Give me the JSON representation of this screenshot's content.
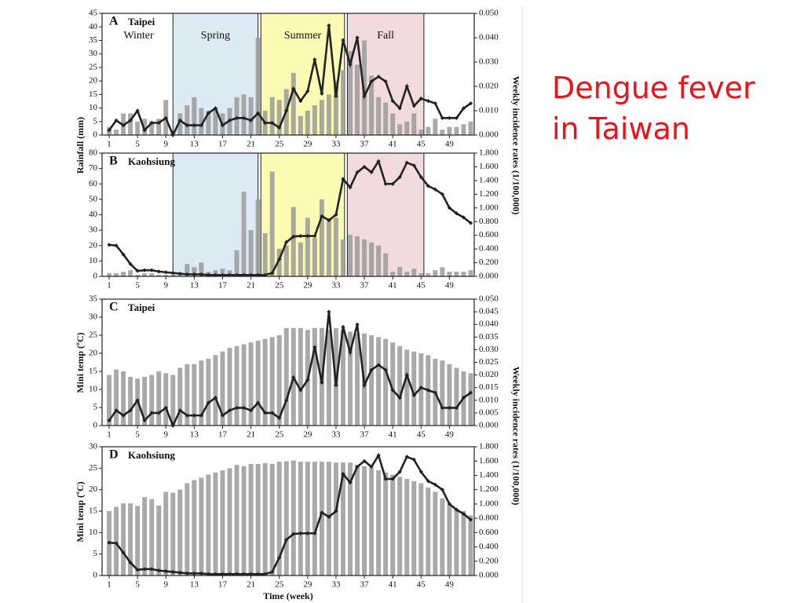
{
  "title": "Dengue fever in Taiwan",
  "chart_data": [
    {
      "type": "bar_line",
      "panel": "A",
      "title": "Taipei",
      "ylabel": "Rainfall (mm)",
      "y2label": "Weekly incidence rates (1/100,000)",
      "bands": [
        {
          "label": "Winter",
          "from": 0.5,
          "to": 9.8
        },
        {
          "label": "Spring",
          "from": 10,
          "to": 22,
          "color": "#dceaf3"
        },
        {
          "label": "Summer",
          "from": 22.4,
          "to": 34.2,
          "color": "#fbfbb4"
        },
        {
          "label": "Fall",
          "from": 34.6,
          "to": 45.4,
          "color": "#f2dbdc"
        }
      ],
      "x": [
        1,
        2,
        3,
        4,
        5,
        6,
        7,
        8,
        9,
        10,
        11,
        12,
        13,
        14,
        15,
        16,
        17,
        18,
        19,
        20,
        21,
        22,
        23,
        24,
        25,
        26,
        27,
        28,
        29,
        30,
        31,
        32,
        33,
        34,
        35,
        36,
        37,
        38,
        39,
        40,
        41,
        42,
        43,
        44,
        45,
        46,
        47,
        48,
        49,
        50,
        51,
        52
      ],
      "xlim": [
        0,
        52.5
      ],
      "xticks": [
        1,
        5,
        9,
        13,
        17,
        21,
        25,
        29,
        33,
        37,
        41,
        45,
        49
      ],
      "ylim": [
        0,
        45
      ],
      "yticks": [
        0,
        5,
        10,
        15,
        20,
        25,
        30,
        35,
        40,
        45
      ],
      "y2lim": [
        0,
        0.05
      ],
      "y2ticks": [
        {
          "value": 0,
          "label": "0.000"
        },
        {
          "value": 0.01,
          "label": "0.010"
        },
        {
          "value": 0.02,
          "label": "0.020"
        },
        {
          "value": 0.03,
          "label": "0.030"
        },
        {
          "value": 0.04,
          "label": "0.040"
        },
        {
          "value": 0.05,
          "label": "0.050"
        }
      ],
      "series": [
        {
          "kind": "bar",
          "color": "#9a9a9a",
          "values": [
            3,
            2,
            8,
            8,
            5,
            6,
            5,
            6,
            13,
            1,
            8,
            11,
            14,
            10,
            9,
            10,
            8,
            10,
            14,
            15,
            14,
            36,
            9,
            14,
            13,
            17,
            23,
            7,
            9,
            11,
            13,
            15,
            20,
            24,
            31,
            26,
            35,
            22,
            14,
            12,
            8,
            4,
            5,
            8,
            2,
            3,
            6,
            2,
            3,
            3,
            4,
            5
          ]
        },
        {
          "kind": "line",
          "axis": "y2",
          "color": "#222222",
          "values": [
            0.002,
            0.006,
            0.004,
            0.006,
            0.01,
            0.002,
            0.005,
            0.005,
            0.007,
            0.0,
            0.006,
            0.004,
            0.004,
            0.004,
            0.009,
            0.011,
            0.004,
            0.006,
            0.007,
            0.007,
            0.006,
            0.009,
            0.005,
            0.005,
            0.003,
            0.01,
            0.019,
            0.014,
            0.018,
            0.031,
            0.017,
            0.045,
            0.016,
            0.039,
            0.029,
            0.04,
            0.016,
            0.022,
            0.024,
            0.022,
            0.014,
            0.011,
            0.02,
            0.012,
            0.015,
            0.014,
            0.013,
            0.007,
            0.007,
            0.007,
            0.011,
            0.013
          ]
        }
      ]
    },
    {
      "type": "bar_line",
      "panel": "B",
      "title": "Kaohsiung",
      "bands": [
        {
          "from": 10,
          "to": 22,
          "color": "#dceaf3"
        },
        {
          "from": 22.4,
          "to": 34.2,
          "color": "#fbfbb4"
        },
        {
          "from": 34.6,
          "to": 45.4,
          "color": "#f2dbdc"
        }
      ],
      "x": [
        1,
        2,
        3,
        4,
        5,
        6,
        7,
        8,
        9,
        10,
        11,
        12,
        13,
        14,
        15,
        16,
        17,
        18,
        19,
        20,
        21,
        22,
        23,
        24,
        25,
        26,
        27,
        28,
        29,
        30,
        31,
        32,
        33,
        34,
        35,
        36,
        37,
        38,
        39,
        40,
        41,
        42,
        43,
        44,
        45,
        46,
        47,
        48,
        49,
        50,
        51,
        52
      ],
      "xlim": [
        0,
        52.5
      ],
      "xticks": [
        1,
        5,
        9,
        13,
        17,
        21,
        25,
        29,
        33,
        37,
        41,
        45,
        49
      ],
      "ylim": [
        0,
        80
      ],
      "yticks": [
        0,
        10,
        20,
        30,
        40,
        50,
        60,
        70,
        80
      ],
      "y2lim": [
        0,
        1.8
      ],
      "y2ticks": [
        {
          "value": 0,
          "label": "0.000"
        },
        {
          "value": 0.2,
          "label": "0.200"
        },
        {
          "value": 0.4,
          "label": "0.400"
        },
        {
          "value": 0.6,
          "label": "0.600"
        },
        {
          "value": 0.8,
          "label": "0.800"
        },
        {
          "value": 1,
          "label": "1.000"
        },
        {
          "value": 1.2,
          "label": "1.200"
        },
        {
          "value": 1.4,
          "label": "1.400"
        },
        {
          "value": 1.6,
          "label": "1.600"
        },
        {
          "value": 1.8,
          "label": "1.800"
        }
      ],
      "series": [
        {
          "kind": "bar",
          "color": "#9a9a9a",
          "values": [
            2,
            2,
            3,
            4,
            1,
            2,
            2,
            1,
            1,
            1,
            2,
            8,
            6,
            9,
            3,
            4,
            5,
            4,
            17,
            55,
            30,
            50,
            28,
            68,
            18,
            20,
            45,
            22,
            38,
            25,
            50,
            37,
            38,
            24,
            27,
            26,
            24,
            22,
            20,
            15,
            3,
            6,
            3,
            5,
            2,
            2,
            4,
            6,
            3,
            3,
            3,
            4
          ]
        },
        {
          "kind": "line",
          "axis": "y2",
          "color": "#222222",
          "values": [
            0.46,
            0.45,
            0.32,
            0.18,
            0.08,
            0.09,
            0.09,
            0.07,
            0.06,
            0.05,
            0.04,
            0.03,
            0.03,
            0.03,
            0.02,
            0.02,
            0.02,
            0.02,
            0.02,
            0.02,
            0.02,
            0.02,
            0.02,
            0.05,
            0.25,
            0.5,
            0.58,
            0.59,
            0.59,
            0.59,
            0.88,
            0.82,
            0.9,
            1.42,
            1.3,
            1.52,
            1.6,
            1.52,
            1.68,
            1.35,
            1.35,
            1.45,
            1.66,
            1.62,
            1.45,
            1.32,
            1.27,
            1.2,
            1.0,
            0.92,
            0.86,
            0.78
          ]
        }
      ]
    },
    {
      "type": "bar_line",
      "panel": "C",
      "title": "Taipei",
      "ylabel": "Mini temp (ºC)",
      "y2label": "Weekly incidence rates (1/100,000)",
      "x": [
        1,
        2,
        3,
        4,
        5,
        6,
        7,
        8,
        9,
        10,
        11,
        12,
        13,
        14,
        15,
        16,
        17,
        18,
        19,
        20,
        21,
        22,
        23,
        24,
        25,
        26,
        27,
        28,
        29,
        30,
        31,
        32,
        33,
        34,
        35,
        36,
        37,
        38,
        39,
        40,
        41,
        42,
        43,
        44,
        45,
        46,
        47,
        48,
        49,
        50,
        51,
        52
      ],
      "xlim": [
        0,
        52.5
      ],
      "xticks": [
        1,
        5,
        9,
        13,
        17,
        21,
        25,
        29,
        33,
        37,
        41,
        45,
        49
      ],
      "ylim": [
        0,
        35
      ],
      "yticks": [
        0,
        5,
        10,
        15,
        20,
        25,
        30,
        35
      ],
      "y2lim": [
        0,
        0.05
      ],
      "y2ticks": [
        {
          "value": 0,
          "label": "0.000"
        },
        {
          "value": 0.005,
          "label": "0.005"
        },
        {
          "value": 0.01,
          "label": "0.010"
        },
        {
          "value": 0.015,
          "label": "0.015"
        },
        {
          "value": 0.02,
          "label": "0.020"
        },
        {
          "value": 0.025,
          "label": "0.025"
        },
        {
          "value": 0.03,
          "label": "0.030"
        },
        {
          "value": 0.035,
          "label": "0.035"
        },
        {
          "value": 0.04,
          "label": "0.040"
        },
        {
          "value": 0.045,
          "label": "0.045"
        },
        {
          "value": 0.05,
          "label": "0.050"
        }
      ],
      "series": [
        {
          "kind": "bar",
          "color": "#9a9a9a",
          "values": [
            14,
            15.5,
            15,
            13.5,
            13,
            13.5,
            14,
            15,
            14.5,
            14,
            16,
            17,
            17,
            18,
            18.5,
            19.5,
            20.5,
            21.5,
            22,
            22.5,
            23,
            23.5,
            24,
            24.5,
            25,
            27,
            27,
            27,
            26.5,
            27,
            27,
            26.5,
            27,
            26.5,
            26,
            25.5,
            25.5,
            25,
            24.5,
            24,
            23,
            22,
            21,
            20.5,
            20,
            19.5,
            18.5,
            18,
            17,
            16,
            15,
            14.5
          ]
        },
        {
          "kind": "line",
          "axis": "y2",
          "color": "#222222",
          "values": [
            0.002,
            0.006,
            0.004,
            0.006,
            0.01,
            0.002,
            0.005,
            0.005,
            0.007,
            0.0,
            0.006,
            0.004,
            0.004,
            0.004,
            0.009,
            0.011,
            0.004,
            0.006,
            0.007,
            0.007,
            0.006,
            0.009,
            0.005,
            0.005,
            0.003,
            0.01,
            0.019,
            0.014,
            0.018,
            0.031,
            0.017,
            0.045,
            0.016,
            0.039,
            0.029,
            0.04,
            0.016,
            0.022,
            0.024,
            0.022,
            0.014,
            0.011,
            0.02,
            0.012,
            0.015,
            0.014,
            0.013,
            0.007,
            0.007,
            0.007,
            0.011,
            0.013
          ]
        }
      ]
    },
    {
      "type": "bar_line",
      "panel": "D",
      "title": "Kaohsiung",
      "ylabel": "Mini temp (ºC)",
      "xlabel": "Time (week)",
      "x": [
        1,
        2,
        3,
        4,
        5,
        6,
        7,
        8,
        9,
        10,
        11,
        12,
        13,
        14,
        15,
        16,
        17,
        18,
        19,
        20,
        21,
        22,
        23,
        24,
        25,
        26,
        27,
        28,
        29,
        30,
        31,
        32,
        33,
        34,
        35,
        36,
        37,
        38,
        39,
        40,
        41,
        42,
        43,
        44,
        45,
        46,
        47,
        48,
        49,
        50,
        51,
        52
      ],
      "xlim": [
        0,
        52.5
      ],
      "xticks": [
        1,
        5,
        9,
        13,
        17,
        21,
        25,
        29,
        33,
        37,
        41,
        45,
        49
      ],
      "ylim": [
        0,
        30
      ],
      "yticks": [
        0,
        5,
        10,
        15,
        20,
        25,
        30
      ],
      "y2lim": [
        0,
        1.8
      ],
      "y2ticks": [
        {
          "value": 0,
          "label": "0.000"
        },
        {
          "value": 0.2,
          "label": "0.200"
        },
        {
          "value": 0.4,
          "label": "0.400"
        },
        {
          "value": 0.6,
          "label": "0.600"
        },
        {
          "value": 0.8,
          "label": "0.800"
        },
        {
          "value": 1,
          "label": "1.000"
        },
        {
          "value": 1.2,
          "label": "1.200"
        },
        {
          "value": 1.4,
          "label": "1.400"
        },
        {
          "value": 1.6,
          "label": "1.600"
        },
        {
          "value": 1.8,
          "label": "1.800"
        }
      ],
      "series": [
        {
          "kind": "bar",
          "color": "#9a9a9a",
          "values": [
            15,
            16,
            16.8,
            16.8,
            16.2,
            18.3,
            17.8,
            16.3,
            19.5,
            19.3,
            20,
            21.5,
            22.2,
            22.8,
            23.5,
            24,
            24.5,
            25,
            25.8,
            25.5,
            26,
            26,
            26.2,
            26,
            26.5,
            26.6,
            26.8,
            26.5,
            26.5,
            26.5,
            26.5,
            26.5,
            26.3,
            26.3,
            26.3,
            25.8,
            25.5,
            25,
            24.5,
            24,
            23.5,
            23,
            22.5,
            22,
            21.5,
            20.5,
            19.5,
            18,
            16.5,
            15.5,
            15,
            14
          ]
        },
        {
          "kind": "line",
          "axis": "y2",
          "color": "#222222",
          "values": [
            0.46,
            0.45,
            0.32,
            0.18,
            0.08,
            0.09,
            0.09,
            0.07,
            0.06,
            0.05,
            0.04,
            0.03,
            0.03,
            0.03,
            0.02,
            0.02,
            0.02,
            0.02,
            0.02,
            0.02,
            0.02,
            0.02,
            0.02,
            0.05,
            0.25,
            0.5,
            0.58,
            0.59,
            0.59,
            0.59,
            0.88,
            0.82,
            0.9,
            1.42,
            1.3,
            1.52,
            1.6,
            1.52,
            1.68,
            1.35,
            1.35,
            1.45,
            1.66,
            1.62,
            1.45,
            1.32,
            1.27,
            1.2,
            1.0,
            0.92,
            0.86,
            0.78
          ]
        }
      ]
    }
  ]
}
